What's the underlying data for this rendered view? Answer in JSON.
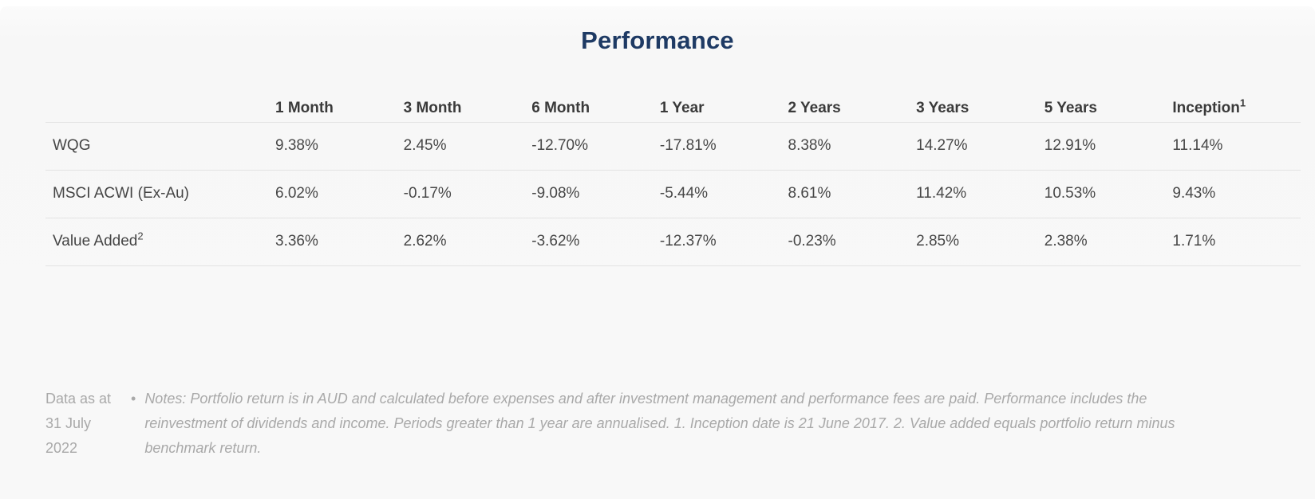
{
  "title": "Performance",
  "colors": {
    "title_navy": "#1e3a64",
    "header_text": "#3a3a3a",
    "cell_text": "#474747",
    "divider": "#e3e3e3",
    "footer_gray": "#a9a9a9",
    "panel_background": "#f8f8f8"
  },
  "table": {
    "columns": [
      {
        "label": "1 Month",
        "sup": ""
      },
      {
        "label": "3 Month",
        "sup": ""
      },
      {
        "label": "6 Month",
        "sup": ""
      },
      {
        "label": "1 Year",
        "sup": ""
      },
      {
        "label": "2 Years",
        "sup": ""
      },
      {
        "label": "3 Years",
        "sup": ""
      },
      {
        "label": "5 Years",
        "sup": ""
      },
      {
        "label": "Inception",
        "sup": "1"
      }
    ],
    "rows": [
      {
        "label": "WQG",
        "sup": "",
        "values": [
          "9.38%",
          "2.45%",
          "-12.70%",
          "-17.81%",
          "8.38%",
          "14.27%",
          "12.91%",
          "11.14%"
        ]
      },
      {
        "label": "MSCI ACWI (Ex-Au)",
        "sup": "",
        "values": [
          "6.02%",
          "-0.17%",
          "-9.08%",
          "-5.44%",
          "8.61%",
          "11.42%",
          "10.53%",
          "9.43%"
        ]
      },
      {
        "label": "Value Added",
        "sup": "2",
        "values": [
          "3.36%",
          "2.62%",
          "-3.62%",
          "-12.37%",
          "-0.23%",
          "2.85%",
          "2.38%",
          "1.71%"
        ]
      }
    ]
  },
  "footer": {
    "data_as_at": "Data as at 31 July 2022",
    "bullet": "•",
    "notes": "Notes: Portfolio return is in AUD and calculated before expenses and after investment management and performance fees are paid. Performance includes the reinvestment of dividends and income. Periods greater than 1 year are annualised. 1. Inception date is 21 June 2017. 2. Value added equals portfolio return minus benchmark return."
  }
}
